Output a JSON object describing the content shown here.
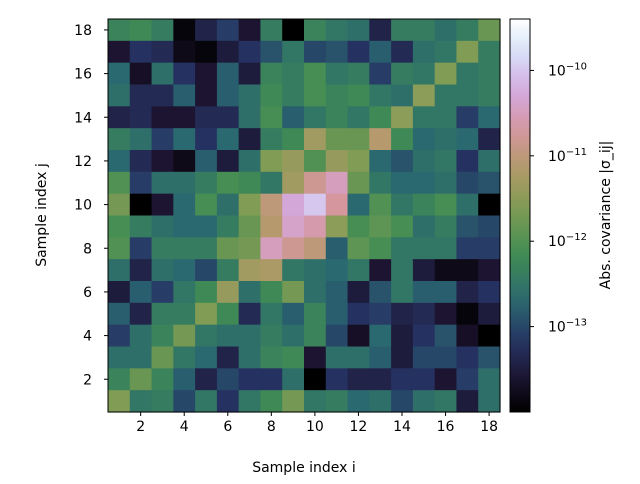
{
  "chart_data": {
    "type": "heatmap",
    "xlabel": "Sample index i",
    "ylabel": "Sample index j",
    "xticks": [
      2,
      4,
      6,
      8,
      10,
      12,
      14,
      16,
      18
    ],
    "yticks": [
      2,
      4,
      6,
      8,
      10,
      12,
      14,
      16,
      18
    ],
    "xlim": [
      0.5,
      18.5
    ],
    "ylim": [
      0.5,
      18.5
    ],
    "colorbar": {
      "label": "Abs. covariance |σ_ij|",
      "scale": "log",
      "range": [
        1e-14,
        4e-10
      ],
      "ticks": [
        {
          "value": 1e-13,
          "label_base": "10",
          "label_exp": "−13"
        },
        {
          "value": 1e-12,
          "label_base": "10",
          "label_exp": "−12"
        },
        {
          "value": 1e-11,
          "label_base": "10",
          "label_exp": "−11"
        },
        {
          "value": 1e-10,
          "label_base": "10",
          "label_exp": "−10"
        }
      ]
    },
    "grid": false,
    "log10_values_rows_j_from_18_to_1": [
      [
        -12.3,
        -12.2,
        -12.4,
        -13.9,
        -13.4,
        -13.1,
        -13.6,
        -12.4,
        -14.4,
        -12.3,
        -12.5,
        -12.6,
        -13.4,
        -12.4,
        -12.4,
        -12.6,
        -12.4,
        -11.8
      ],
      [
        -13.6,
        -13.2,
        -13.3,
        -13.8,
        -13.9,
        -13.5,
        -13.2,
        -12.9,
        -12.5,
        -13.0,
        -12.9,
        -13.2,
        -12.8,
        -13.3,
        -12.6,
        -12.5,
        -11.6,
        -12.4
      ],
      [
        -12.7,
        -13.7,
        -12.6,
        -13.2,
        -13.6,
        -12.8,
        -13.5,
        -12.3,
        -12.4,
        -12.1,
        -12.5,
        -12.4,
        -13.1,
        -12.4,
        -12.5,
        -11.6,
        -12.5,
        -12.4
      ],
      [
        -12.6,
        -13.3,
        -13.3,
        -12.8,
        -13.6,
        -12.8,
        -12.6,
        -12.2,
        -12.4,
        -12.1,
        -12.3,
        -12.2,
        -12.5,
        -12.6,
        -11.5,
        -12.5,
        -12.5,
        -12.4
      ],
      [
        -13.4,
        -13.3,
        -13.6,
        -13.6,
        -13.3,
        -13.3,
        -12.6,
        -12.1,
        -12.8,
        -12.5,
        -12.3,
        -12.5,
        -12.2,
        -11.5,
        -12.5,
        -12.5,
        -13.1,
        -12.7
      ],
      [
        -12.4,
        -12.6,
        -13.1,
        -12.7,
        -13.2,
        -12.7,
        -13.5,
        -12.4,
        -12.2,
        -11.3,
        -11.8,
        -11.8,
        -11.1,
        -12.2,
        -12.7,
        -12.6,
        -12.7,
        -13.4
      ],
      [
        -12.7,
        -13.3,
        -13.6,
        -13.8,
        -12.8,
        -13.5,
        -12.6,
        -11.6,
        -11.4,
        -12.0,
        -11.4,
        -11.6,
        -12.7,
        -12.9,
        -12.6,
        -12.5,
        -13.2,
        -12.6
      ],
      [
        -12.0,
        -13.1,
        -12.6,
        -12.6,
        -12.4,
        -12.1,
        -12.2,
        -12.5,
        -11.3,
        -10.8,
        -10.5,
        -11.8,
        -12.5,
        -12.7,
        -12.7,
        -12.6,
        -13.0,
        -12.9
      ],
      [
        -11.7,
        -14.2,
        -13.6,
        -12.7,
        -12.1,
        -12.6,
        -11.6,
        -11.0,
        -10.3,
        -10.0,
        -10.7,
        -12.7,
        -12.0,
        -12.5,
        -12.3,
        -12.1,
        -12.6,
        -14.7
      ],
      [
        -12.1,
        -12.4,
        -12.6,
        -12.7,
        -12.7,
        -12.4,
        -11.8,
        -11.1,
        -10.4,
        -10.6,
        -11.5,
        -12.1,
        -11.9,
        -12.1,
        -12.6,
        -12.4,
        -12.9,
        -13.0
      ],
      [
        -12.0,
        -13.1,
        -12.4,
        -12.4,
        -12.4,
        -11.8,
        -11.7,
        -10.5,
        -10.8,
        -11.0,
        -12.8,
        -11.9,
        -12.1,
        -12.5,
        -12.5,
        -12.5,
        -13.1,
        -13.1
      ],
      [
        -12.6,
        -13.4,
        -12.6,
        -12.7,
        -13.0,
        -12.4,
        -11.3,
        -11.2,
        -12.5,
        -12.6,
        -12.7,
        -12.5,
        -13.6,
        -12.5,
        -13.5,
        -13.8,
        -13.8,
        -13.6
      ],
      [
        -13.5,
        -12.8,
        -13.1,
        -12.5,
        -12.2,
        -11.4,
        -12.6,
        -12.2,
        -11.7,
        -12.6,
        -12.8,
        -13.5,
        -12.9,
        -12.5,
        -12.8,
        -12.8,
        -13.4,
        -13.2
      ],
      [
        -12.8,
        -13.4,
        -12.4,
        -12.4,
        -11.6,
        -12.2,
        -13.3,
        -12.5,
        -12.8,
        -12.3,
        -12.8,
        -13.2,
        -13.1,
        -13.4,
        -13.3,
        -13.6,
        -13.9,
        -13.5
      ],
      [
        -13.1,
        -12.6,
        -12.3,
        -11.7,
        -12.5,
        -12.6,
        -12.6,
        -12.4,
        -12.6,
        -12.3,
        -13.0,
        -13.7,
        -12.7,
        -13.5,
        -13.2,
        -12.9,
        -13.7,
        -14.2
      ],
      [
        -12.6,
        -12.6,
        -11.8,
        -12.5,
        -12.7,
        -13.4,
        -12.6,
        -12.3,
        -12.2,
        -13.6,
        -12.6,
        -12.6,
        -12.8,
        -13.5,
        -13.0,
        -13.0,
        -13.2,
        -12.9
      ],
      [
        -12.3,
        -11.8,
        -12.3,
        -12.8,
        -13.4,
        -13.0,
        -13.2,
        -13.2,
        -12.6,
        -14.1,
        -13.2,
        -13.4,
        -13.4,
        -13.2,
        -13.2,
        -13.6,
        -13.1,
        -12.6
      ],
      [
        -11.6,
        -12.5,
        -12.4,
        -13.0,
        -12.5,
        -13.2,
        -12.5,
        -12.2,
        -11.7,
        -12.5,
        -12.4,
        -12.7,
        -12.6,
        -13.0,
        -12.6,
        -12.5,
        -13.5,
        -12.6
      ]
    ]
  }
}
